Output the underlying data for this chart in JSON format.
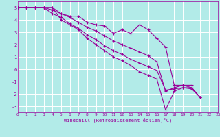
{
  "xlabel": "Windchill (Refroidissement éolien,°C)",
  "bg_color": "#b2ebe8",
  "grid_color": "#c8e8e5",
  "line_color": "#990099",
  "x": [
    0,
    1,
    2,
    3,
    4,
    5,
    6,
    7,
    8,
    9,
    10,
    11,
    12,
    13,
    14,
    15,
    16,
    17,
    18,
    19,
    20,
    21,
    22,
    23
  ],
  "line1": [
    5.0,
    5.0,
    5.0,
    5.0,
    5.0,
    4.5,
    4.3,
    4.3,
    3.8,
    3.6,
    3.5,
    2.9,
    3.2,
    2.9,
    3.6,
    3.2,
    2.5,
    1.8,
    -1.3,
    -1.3,
    -1.3,
    null,
    null,
    null
  ],
  "line2": [
    5.0,
    5.0,
    5.0,
    5.0,
    5.0,
    4.0,
    3.6,
    3.2,
    2.5,
    2.0,
    1.5,
    1.0,
    0.7,
    0.3,
    -0.2,
    -0.5,
    -0.8,
    -3.3,
    -1.8,
    -1.5,
    -1.5,
    -2.3,
    null,
    null
  ],
  "line3": [
    5.0,
    5.0,
    5.0,
    5.0,
    4.8,
    4.5,
    4.2,
    3.8,
    3.4,
    3.1,
    2.7,
    2.3,
    2.0,
    1.7,
    1.4,
    1.1,
    0.6,
    -1.8,
    -1.5,
    -1.3,
    -1.5,
    -2.3,
    null,
    null
  ],
  "line4": [
    5.0,
    5.0,
    5.0,
    5.0,
    4.5,
    4.2,
    3.7,
    3.3,
    2.8,
    2.4,
    1.9,
    1.5,
    1.2,
    0.8,
    0.5,
    0.2,
    -0.1,
    -1.7,
    -1.6,
    -1.5,
    -1.6,
    -2.3,
    null,
    null
  ],
  "ylim": [
    -3.5,
    5.5
  ],
  "xlim": [
    0,
    23
  ],
  "yticks": [
    -3,
    -2,
    -1,
    0,
    1,
    2,
    3,
    4,
    5
  ],
  "xticks": [
    0,
    1,
    2,
    3,
    4,
    5,
    6,
    7,
    8,
    9,
    10,
    11,
    12,
    13,
    14,
    15,
    16,
    17,
    18,
    19,
    20,
    21,
    22,
    23
  ]
}
